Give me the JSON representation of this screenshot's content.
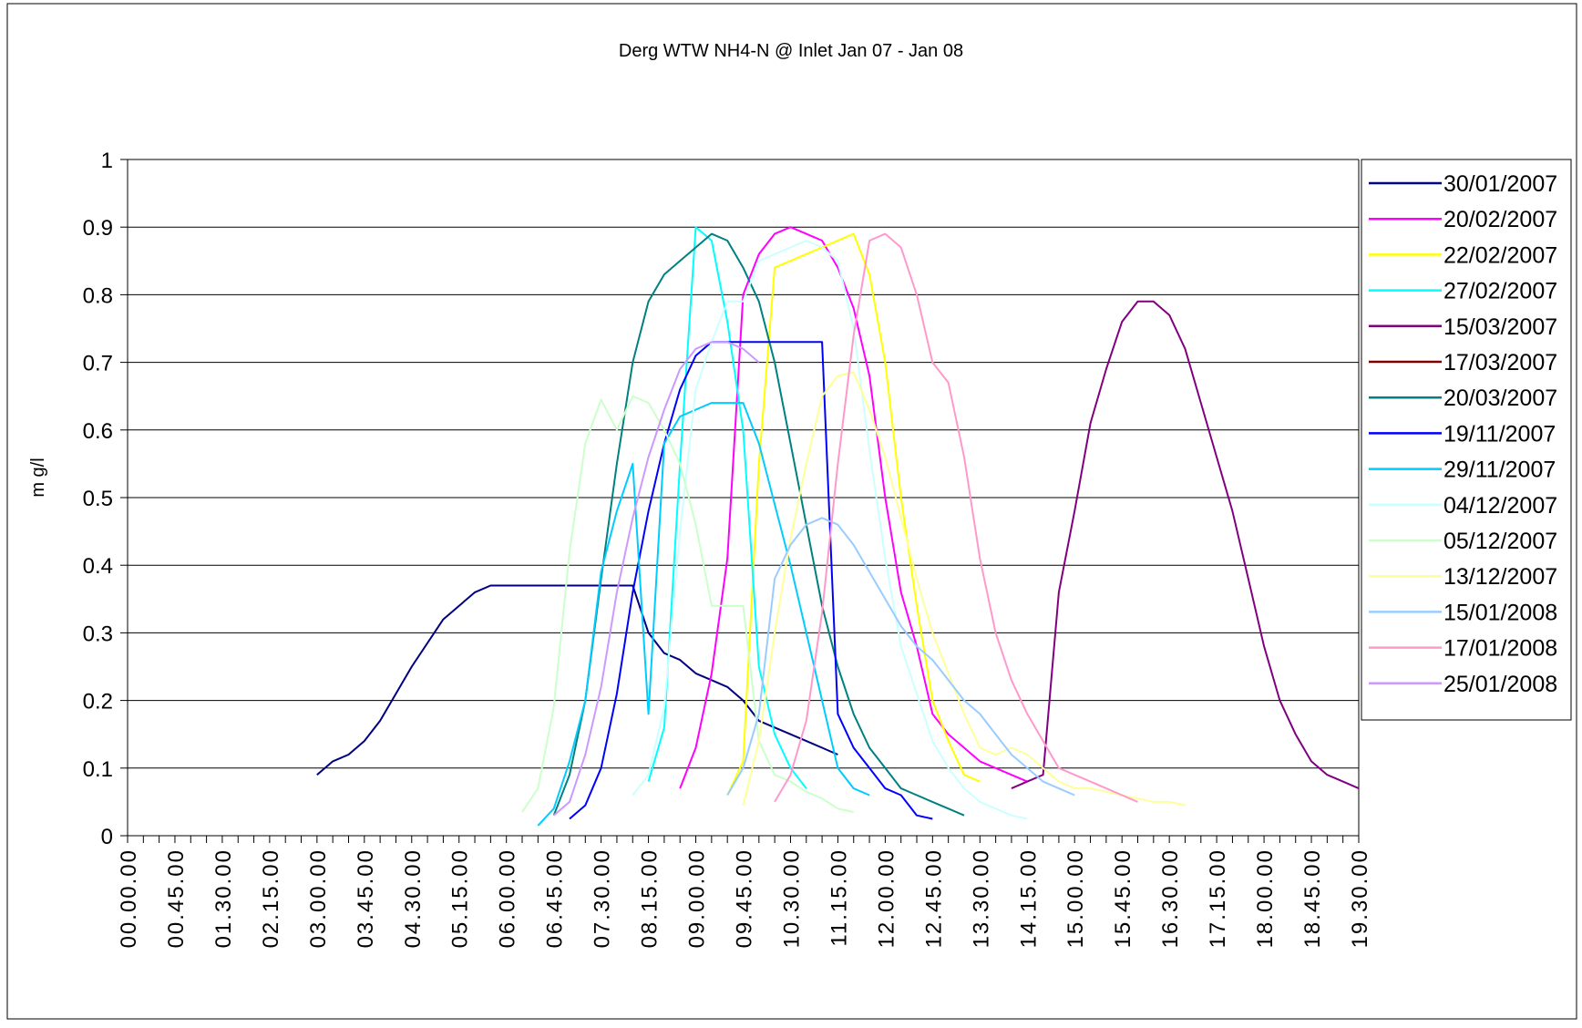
{
  "chart_data": {
    "type": "line",
    "title": "Derg WTW NH4-N @ Inlet Jan 07 - Jan 08",
    "xlabel": "",
    "ylabel": "m g/l",
    "ylim": [
      0,
      1
    ],
    "yticks": [
      "0",
      "0.1",
      "0.2",
      "0.3",
      "0.4",
      "0.5",
      "0.6",
      "0.7",
      "0.8",
      "0.9",
      "1"
    ],
    "xticks": [
      "00.00.00",
      "00.45.00",
      "01.30.00",
      "02.15.00",
      "03.00.00",
      "03.45.00",
      "04.30.00",
      "05.15.00",
      "06.00.00",
      "06.45.00",
      "07.30.00",
      "08.15.00",
      "09.00.00",
      "09.45.00",
      "10.30.00",
      "11.15.00",
      "12.00.00",
      "12.45.00",
      "13.30.00",
      "14.15.00",
      "15.00.00",
      "15.45.00",
      "16.30.00",
      "17.15.00",
      "18.00.00",
      "18.45.00",
      "19.30.00"
    ],
    "x_unit": "hours",
    "x_range": [
      0,
      19.5
    ],
    "grid": "horizontal",
    "legend_position": "right",
    "series": [
      {
        "name": "30/01/2007",
        "color": "#000080",
        "x": [
          3.0,
          3.25,
          3.5,
          3.75,
          4.0,
          4.5,
          5.0,
          5.5,
          5.75,
          6.0,
          7.0,
          8.0,
          8.25,
          8.5,
          8.75,
          9.0,
          9.25,
          9.5,
          9.75,
          10.0,
          10.25,
          10.5,
          10.75,
          11.0,
          11.25
        ],
        "y": [
          0.09,
          0.11,
          0.12,
          0.14,
          0.17,
          0.25,
          0.32,
          0.36,
          0.37,
          0.37,
          0.37,
          0.37,
          0.3,
          0.27,
          0.26,
          0.24,
          0.23,
          0.22,
          0.2,
          0.17,
          0.16,
          0.15,
          0.14,
          0.13,
          0.12
        ]
      },
      {
        "name": "20/02/2007",
        "color": "#ff00ff",
        "x": [
          8.75,
          9.0,
          9.25,
          9.5,
          9.75,
          10.0,
          10.25,
          10.5,
          10.75,
          11.0,
          11.25,
          11.5,
          11.75,
          12.0,
          12.25,
          12.5,
          12.75,
          13.0,
          13.25,
          13.5,
          13.75,
          14.0,
          14.25
        ],
        "y": [
          0.07,
          0.13,
          0.24,
          0.41,
          0.8,
          0.86,
          0.89,
          0.9,
          0.89,
          0.88,
          0.84,
          0.78,
          0.68,
          0.5,
          0.36,
          0.28,
          0.18,
          0.15,
          0.13,
          0.11,
          0.1,
          0.09,
          0.08
        ]
      },
      {
        "name": "22/02/2007",
        "color": "#ffff00",
        "x": [
          9.5,
          9.75,
          10.0,
          10.25,
          11.5,
          11.75,
          12.0,
          12.25,
          12.5,
          12.75,
          13.0,
          13.25,
          13.5
        ],
        "y": [
          0.06,
          0.11,
          0.55,
          0.84,
          0.89,
          0.83,
          0.7,
          0.5,
          0.34,
          0.2,
          0.14,
          0.09,
          0.08
        ]
      },
      {
        "name": "27/02/2007",
        "color": "#00ffff",
        "x": [
          8.25,
          8.5,
          8.75,
          9.0,
          9.25,
          9.5,
          9.75,
          10.0,
          10.25,
          10.5,
          10.75
        ],
        "y": [
          0.08,
          0.16,
          0.55,
          0.9,
          0.88,
          0.76,
          0.6,
          0.25,
          0.15,
          0.1,
          0.07
        ]
      },
      {
        "name": "15/03/2007",
        "color": "#800080",
        "x": [
          14.0,
          14.25,
          14.5,
          14.75,
          15.0,
          15.25,
          15.5,
          15.75,
          16.0,
          16.25,
          16.5,
          16.75,
          17.0,
          17.25,
          17.5,
          17.75,
          18.0,
          18.25,
          18.5,
          18.75,
          19.0,
          19.25,
          19.5
        ],
        "y": [
          0.07,
          0.08,
          0.09,
          0.36,
          0.48,
          0.61,
          0.69,
          0.76,
          0.79,
          0.79,
          0.77,
          0.72,
          0.64,
          0.56,
          0.48,
          0.38,
          0.28,
          0.2,
          0.15,
          0.11,
          0.09,
          0.08,
          0.07
        ]
      },
      {
        "name": "17/03/2007",
        "color": "#800000",
        "x": [],
        "y": []
      },
      {
        "name": "20/03/2007",
        "color": "#008080",
        "x": [
          6.75,
          7.0,
          7.25,
          7.5,
          7.75,
          8.0,
          8.25,
          8.5,
          8.75,
          9.0,
          9.25,
          9.5,
          9.75,
          10.0,
          10.25,
          10.5,
          10.75,
          11.0,
          11.25,
          11.5,
          11.75,
          12.0,
          12.25,
          12.5,
          12.75,
          13.0,
          13.25
        ],
        "y": [
          0.03,
          0.09,
          0.2,
          0.38,
          0.55,
          0.7,
          0.79,
          0.83,
          0.85,
          0.87,
          0.89,
          0.88,
          0.84,
          0.79,
          0.7,
          0.58,
          0.46,
          0.34,
          0.25,
          0.18,
          0.13,
          0.1,
          0.07,
          0.06,
          0.05,
          0.04,
          0.03
        ]
      },
      {
        "name": "19/11/2007",
        "color": "#0000ff",
        "x": [
          7.0,
          7.25,
          7.5,
          7.75,
          8.0,
          8.25,
          8.5,
          8.75,
          9.0,
          9.25,
          9.5,
          9.75,
          10.0,
          10.25,
          10.5,
          10.75,
          11.0,
          11.25,
          11.5,
          11.75,
          12.0,
          12.25,
          12.5,
          12.75
        ],
        "y": [
          0.025,
          0.045,
          0.1,
          0.21,
          0.36,
          0.48,
          0.58,
          0.66,
          0.71,
          0.73,
          0.73,
          0.73,
          0.73,
          0.73,
          0.73,
          0.73,
          0.73,
          0.18,
          0.13,
          0.1,
          0.07,
          0.06,
          0.03,
          0.025
        ]
      },
      {
        "name": "29/11/2007",
        "color": "#00ccff",
        "x": [
          6.5,
          6.75,
          7.0,
          7.25,
          7.5,
          7.75,
          8.0,
          8.25,
          8.5,
          8.75,
          9.0,
          9.25,
          9.5,
          9.75,
          10.0,
          10.25,
          10.5,
          10.75,
          11.0,
          11.25,
          11.5,
          11.75
        ],
        "y": [
          0.015,
          0.04,
          0.11,
          0.2,
          0.39,
          0.48,
          0.55,
          0.18,
          0.58,
          0.62,
          0.63,
          0.64,
          0.64,
          0.64,
          0.58,
          0.49,
          0.4,
          0.3,
          0.2,
          0.1,
          0.07,
          0.06
        ]
      },
      {
        "name": "04/12/2007",
        "color": "#ccffff",
        "x": [
          8.0,
          8.25,
          8.5,
          8.75,
          9.0,
          9.25,
          9.5,
          9.75,
          10.0,
          10.25,
          10.5,
          10.75,
          11.0,
          11.25,
          11.5,
          11.75,
          12.0,
          12.25,
          12.5,
          12.75,
          13.0,
          13.25,
          13.5,
          13.75,
          14.0,
          14.25
        ],
        "y": [
          0.06,
          0.09,
          0.19,
          0.45,
          0.66,
          0.73,
          0.79,
          0.79,
          0.85,
          0.86,
          0.87,
          0.88,
          0.87,
          0.85,
          0.75,
          0.57,
          0.41,
          0.28,
          0.21,
          0.14,
          0.1,
          0.07,
          0.05,
          0.04,
          0.03,
          0.025
        ]
      },
      {
        "name": "05/12/2007",
        "color": "#ccffcc",
        "x": [
          6.25,
          6.5,
          6.75,
          7.0,
          7.25,
          7.5,
          7.75,
          8.0,
          8.25,
          8.5,
          8.75,
          9.0,
          9.25,
          9.5,
          9.75,
          10.0,
          10.25,
          10.5,
          10.75,
          11.0,
          11.25,
          11.5
        ],
        "y": [
          0.035,
          0.07,
          0.19,
          0.42,
          0.58,
          0.645,
          0.6,
          0.65,
          0.64,
          0.6,
          0.55,
          0.46,
          0.34,
          0.34,
          0.34,
          0.14,
          0.09,
          0.08,
          0.065,
          0.055,
          0.04,
          0.035
        ]
      },
      {
        "name": "13/12/2007",
        "color": "#ffff99",
        "x": [
          9.75,
          10.0,
          10.25,
          10.5,
          10.75,
          11.0,
          11.25,
          11.5,
          11.75,
          12.0,
          12.25,
          12.5,
          12.75,
          13.0,
          13.25,
          13.5,
          13.75,
          14.0,
          14.25,
          14.5,
          14.75,
          15.0,
          15.25,
          15.5,
          15.75,
          16.0,
          16.25,
          16.5,
          16.75
        ],
        "y": [
          0.045,
          0.14,
          0.3,
          0.44,
          0.55,
          0.65,
          0.68,
          0.685,
          0.63,
          0.56,
          0.47,
          0.38,
          0.3,
          0.24,
          0.18,
          0.13,
          0.12,
          0.13,
          0.12,
          0.1,
          0.08,
          0.07,
          0.07,
          0.065,
          0.06,
          0.055,
          0.05,
          0.05,
          0.045
        ]
      },
      {
        "name": "15/01/2008",
        "color": "#99ccff",
        "x": [
          9.5,
          9.75,
          10.0,
          10.25,
          10.5,
          10.75,
          11.0,
          11.25,
          11.5,
          11.75,
          12.0,
          12.25,
          12.5,
          12.75,
          13.0,
          13.25,
          13.5,
          13.75,
          14.0,
          14.25,
          14.5,
          14.75,
          15.0
        ],
        "y": [
          0.06,
          0.1,
          0.18,
          0.38,
          0.43,
          0.46,
          0.47,
          0.46,
          0.43,
          0.39,
          0.35,
          0.31,
          0.28,
          0.26,
          0.23,
          0.2,
          0.18,
          0.15,
          0.12,
          0.1,
          0.08,
          0.07,
          0.06
        ]
      },
      {
        "name": "17/01/2008",
        "color": "#ff99cc",
        "x": [
          10.25,
          10.5,
          10.75,
          11.0,
          11.25,
          11.5,
          11.75,
          12.0,
          12.25,
          12.5,
          12.75,
          13.0,
          13.25,
          13.5,
          13.75,
          14.0,
          14.25,
          14.5,
          14.75,
          15.0,
          15.25,
          15.5,
          15.75,
          16.0
        ],
        "y": [
          0.05,
          0.09,
          0.17,
          0.33,
          0.55,
          0.74,
          0.88,
          0.89,
          0.87,
          0.8,
          0.7,
          0.67,
          0.56,
          0.41,
          0.3,
          0.23,
          0.18,
          0.14,
          0.1,
          0.09,
          0.08,
          0.07,
          0.06,
          0.05
        ]
      },
      {
        "name": "25/01/2008",
        "color": "#cc99ff",
        "x": [
          6.75,
          7.0,
          7.25,
          7.5,
          7.75,
          8.0,
          8.25,
          8.5,
          8.75,
          9.0,
          9.25,
          9.5,
          9.75,
          10.0
        ],
        "y": [
          0.03,
          0.05,
          0.12,
          0.22,
          0.36,
          0.47,
          0.56,
          0.63,
          0.69,
          0.72,
          0.73,
          0.73,
          0.72,
          0.7
        ]
      }
    ]
  }
}
